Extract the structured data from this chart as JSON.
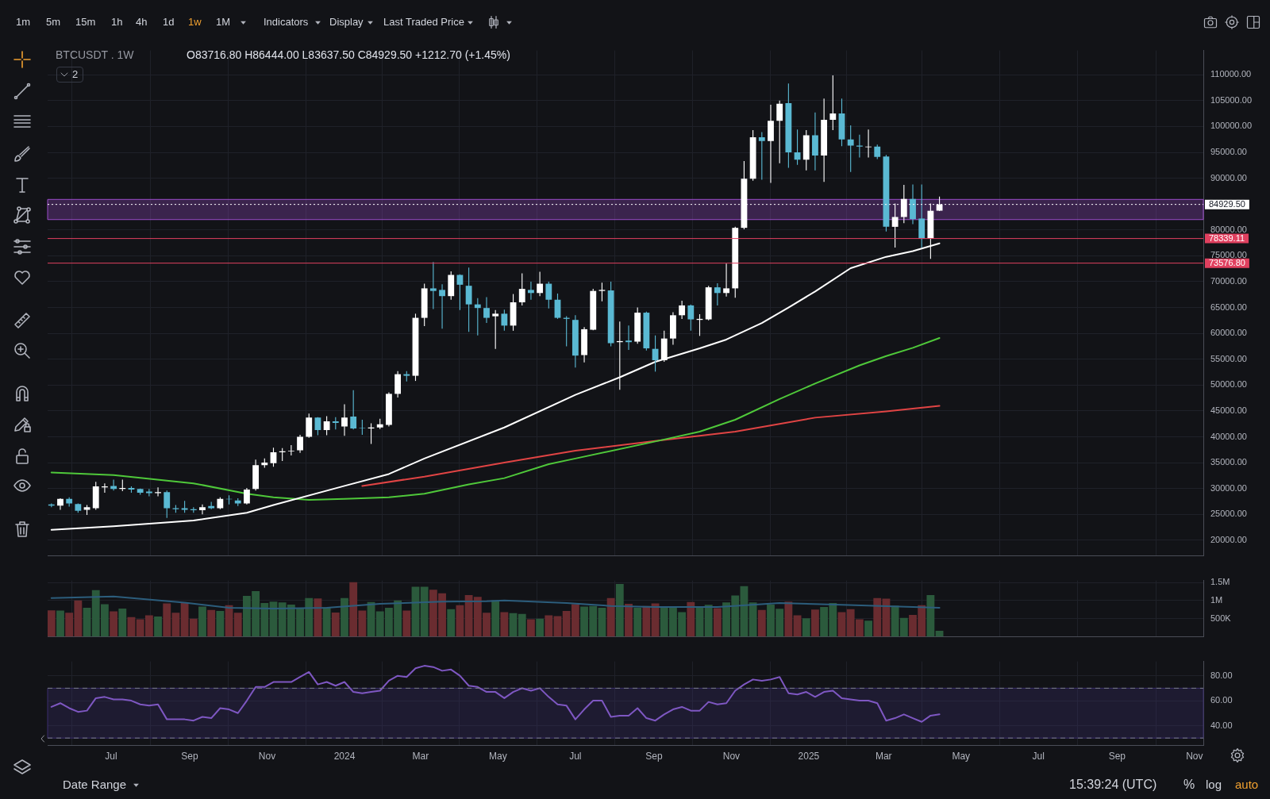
{
  "chart_data": [
    {
      "type": "candlestick",
      "title": "BTCUSDT . 1W",
      "subtitle": "O83716.80 H86444.00 L83637.50 C84929.50 +1212.70 (+1.45%)",
      "annotations": [
        "1m",
        "5m",
        "15m",
        "1h",
        "4h",
        "1d",
        "1w",
        "1M",
        "Indicators",
        "Display",
        "Last Traded Price",
        "2",
        "Date Range",
        "15:39:24 (UTC)",
        "%",
        "log",
        "auto"
      ],
      "x": [
        "2023-05-15",
        "2023-05-22",
        "2023-05-29",
        "2023-06-05",
        "2023-06-12",
        "2023-06-19",
        "2023-06-26",
        "2023-07-03",
        "2023-07-10",
        "2023-07-17",
        "2023-07-24",
        "2023-07-31",
        "2023-08-07",
        "2023-08-14",
        "2023-08-21",
        "2023-08-28",
        "2023-09-04",
        "2023-09-11",
        "2023-09-18",
        "2023-09-25",
        "2023-10-02",
        "2023-10-09",
        "2023-10-16",
        "2023-10-23",
        "2023-10-30",
        "2023-11-06",
        "2023-11-13",
        "2023-11-20",
        "2023-11-27",
        "2023-12-04",
        "2023-12-11",
        "2023-12-18",
        "2023-12-25",
        "2024-01-01",
        "2024-01-08",
        "2024-01-15",
        "2024-01-22",
        "2024-01-29",
        "2024-02-05",
        "2024-02-12",
        "2024-02-19",
        "2024-02-26",
        "2024-03-04",
        "2024-03-11",
        "2024-03-18",
        "2024-03-25",
        "2024-04-01",
        "2024-04-08",
        "2024-04-15",
        "2024-04-22",
        "2024-04-29",
        "2024-05-06",
        "2024-05-13",
        "2024-05-20",
        "2024-05-27",
        "2024-06-03",
        "2024-06-10",
        "2024-06-17",
        "2024-06-24",
        "2024-07-01",
        "2024-07-08",
        "2024-07-15",
        "2024-07-22",
        "2024-07-29",
        "2024-08-05",
        "2024-08-12",
        "2024-08-19",
        "2024-08-26",
        "2024-09-02",
        "2024-09-09",
        "2024-09-16",
        "2024-09-23",
        "2024-09-30",
        "2024-10-07",
        "2024-10-14",
        "2024-10-21",
        "2024-10-28",
        "2024-11-04",
        "2024-11-11",
        "2024-11-18",
        "2024-11-25",
        "2024-12-02",
        "2024-12-09",
        "2024-12-16",
        "2024-12-23",
        "2024-12-30",
        "2025-01-06",
        "2025-01-13",
        "2025-01-20",
        "2025-01-27",
        "2025-02-03",
        "2025-02-10",
        "2025-02-17",
        "2025-02-24",
        "2025-03-03",
        "2025-03-10",
        "2025-03-17",
        "2025-03-24",
        "2025-03-31",
        "2025-04-07",
        "2025-04-14"
      ],
      "ohlc": [
        [
          26900,
          27100,
          26400,
          26700
        ],
        [
          26700,
          28100,
          25900,
          28000
        ],
        [
          28000,
          28300,
          26500,
          27100
        ],
        [
          27000,
          27100,
          25300,
          25700
        ],
        [
          25900,
          26800,
          24900,
          26400
        ],
        [
          26200,
          31300,
          25900,
          30400
        ],
        [
          30200,
          31000,
          29200,
          30400
        ],
        [
          30500,
          31700,
          29600,
          29900
        ],
        [
          29900,
          31700,
          29500,
          30100
        ],
        [
          30100,
          30400,
          29200,
          29800
        ],
        [
          29900,
          30000,
          28800,
          29200
        ],
        [
          29400,
          29900,
          28500,
          29100
        ],
        [
          29100,
          30200,
          28500,
          29300
        ],
        [
          29300,
          29600,
          24300,
          26200
        ],
        [
          26200,
          26800,
          25300,
          26000
        ],
        [
          26200,
          27600,
          25300,
          25900
        ],
        [
          26000,
          26400,
          25300,
          25800
        ],
        [
          25800,
          26900,
          25000,
          26400
        ],
        [
          26600,
          27400,
          26000,
          26200
        ],
        [
          26200,
          28300,
          26000,
          28000
        ],
        [
          28000,
          28700,
          26900,
          27900
        ],
        [
          27700,
          28100,
          26600,
          27100
        ],
        [
          27100,
          30100,
          26900,
          29800
        ],
        [
          29900,
          35600,
          29600,
          34500
        ],
        [
          34500,
          35800,
          34000,
          35000
        ],
        [
          34900,
          37900,
          34200,
          37000
        ],
        [
          37000,
          37800,
          35300,
          37200
        ],
        [
          37200,
          38400,
          36400,
          37300
        ],
        [
          37400,
          40400,
          36900,
          40000
        ],
        [
          40000,
          44500,
          39800,
          43700
        ],
        [
          43700,
          43800,
          40300,
          41300
        ],
        [
          41300,
          44000,
          40300,
          43000
        ],
        [
          43000,
          43800,
          41400,
          42700
        ],
        [
          42000,
          46300,
          40200,
          43700
        ],
        [
          43900,
          49000,
          41400,
          41600
        ],
        [
          41700,
          43300,
          40400,
          41600
        ],
        [
          41600,
          42600,
          38600,
          41800
        ],
        [
          41800,
          43500,
          41500,
          42400
        ],
        [
          42300,
          48600,
          42000,
          48300
        ],
        [
          48300,
          52700,
          47600,
          52100
        ],
        [
          52100,
          52700,
          50700,
          51800
        ],
        [
          51800,
          63800,
          50800,
          63000
        ],
        [
          63000,
          69600,
          61400,
          68700
        ],
        [
          68700,
          73800,
          64700,
          68200
        ],
        [
          68400,
          69500,
          60900,
          67200
        ],
        [
          67200,
          72000,
          66500,
          71300
        ],
        [
          71300,
          71400,
          64500,
          69400
        ],
        [
          69200,
          72700,
          60300,
          65600
        ],
        [
          65600,
          66800,
          59600,
          64900
        ],
        [
          64900,
          67000,
          62000,
          63000
        ],
        [
          63300,
          64500,
          57000,
          63800
        ],
        [
          63800,
          64600,
          60500,
          61500
        ],
        [
          61500,
          67600,
          60500,
          66000
        ],
        [
          66000,
          71600,
          65400,
          68600
        ],
        [
          68400,
          70000,
          66500,
          67800
        ],
        [
          67800,
          71900,
          67200,
          69600
        ],
        [
          69600,
          70000,
          64800,
          66500
        ],
        [
          66500,
          67700,
          62800,
          63000
        ],
        [
          63000,
          63300,
          57500,
          62800
        ],
        [
          62600,
          63500,
          53400,
          55700
        ],
        [
          55800,
          61200,
          54400,
          60800
        ],
        [
          60700,
          68600,
          60600,
          68200
        ],
        [
          68200,
          69800,
          66200,
          68400
        ],
        [
          68300,
          70000,
          57500,
          58100
        ],
        [
          58300,
          62300,
          49100,
          58500
        ],
        [
          58600,
          61500,
          56800,
          58300
        ],
        [
          58400,
          65000,
          58000,
          64000
        ],
        [
          64000,
          64200,
          56700,
          57100
        ],
        [
          57000,
          59600,
          52600,
          54800
        ],
        [
          54800,
          60500,
          54500,
          59000
        ],
        [
          59000,
          64100,
          57800,
          63500
        ],
        [
          63500,
          66300,
          62800,
          65400
        ],
        [
          65400,
          65600,
          60500,
          62700
        ],
        [
          62600,
          63700,
          59500,
          62800
        ],
        [
          62700,
          69200,
          62500,
          68900
        ],
        [
          68900,
          69700,
          65400,
          67800
        ],
        [
          67800,
          73500,
          67100,
          68700
        ],
        [
          68700,
          80600,
          66900,
          80400
        ],
        [
          80400,
          93300,
          80100,
          89900
        ],
        [
          89900,
          99300,
          89500,
          97900
        ],
        [
          97900,
          98900,
          89700,
          97200
        ],
        [
          97200,
          104200,
          89100,
          101100
        ],
        [
          101100,
          105000,
          92900,
          104400
        ],
        [
          104500,
          108300,
          92000,
          95000
        ],
        [
          95000,
          99400,
          92600,
          93600
        ],
        [
          93600,
          99300,
          91500,
          98300
        ],
        [
          98300,
          102700,
          91500,
          94400
        ],
        [
          94400,
          105400,
          89300,
          101300
        ],
        [
          101300,
          109900,
          99300,
          102500
        ],
        [
          102500,
          105400,
          96200,
          97500
        ],
        [
          97500,
          100200,
          91200,
          96300
        ],
        [
          96300,
          98400,
          94000,
          96100
        ],
        [
          96000,
          99400,
          94000,
          96100
        ],
        [
          96100,
          96500,
          93700,
          94100
        ],
        [
          94200,
          94500,
          79700,
          80600
        ],
        [
          80600,
          85100,
          76600,
          82500
        ],
        [
          82500,
          88700,
          81300,
          86000
        ],
        [
          86000,
          88800,
          81100,
          82100
        ],
        [
          82200,
          88800,
          76600,
          78300
        ],
        [
          78300,
          85100,
          74400,
          83700
        ],
        [
          83716.8,
          86444,
          83637.5,
          84929.5
        ]
      ],
      "colors": [
        "#5ab9d3",
        "#ffffff",
        "#5ab9d3",
        "#5ab9d3",
        "#ffffff",
        "#ffffff",
        "#ffffff",
        "#5ab9d3",
        "#ffffff",
        "#5ab9d3",
        "#5ab9d3",
        "#5ab9d3",
        "#ffffff",
        "#5ab9d3",
        "#5ab9d3",
        "#5ab9d3",
        "#5ab9d3",
        "#ffffff",
        "#5ab9d3",
        "#ffffff",
        "#5ab9d3",
        "#5ab9d3",
        "#ffffff",
        "#ffffff",
        "#ffffff",
        "#ffffff",
        "#ffffff",
        "#ffffff",
        "#ffffff",
        "#ffffff",
        "#5ab9d3",
        "#ffffff",
        "#5ab9d3",
        "#ffffff",
        "#5ab9d3",
        "#5ab9d3",
        "#ffffff",
        "#ffffff",
        "#ffffff",
        "#ffffff",
        "#5ab9d3",
        "#ffffff",
        "#ffffff",
        "#5ab9d3",
        "#5ab9d3",
        "#ffffff",
        "#5ab9d3",
        "#5ab9d3",
        "#5ab9d3",
        "#5ab9d3",
        "#ffffff",
        "#5ab9d3",
        "#ffffff",
        "#ffffff",
        "#5ab9d3",
        "#ffffff",
        "#5ab9d3",
        "#5ab9d3",
        "#5ab9d3",
        "#5ab9d3",
        "#ffffff",
        "#ffffff",
        "#ffffff",
        "#5ab9d3",
        "#ffffff",
        "#5ab9d3",
        "#ffffff",
        "#5ab9d3",
        "#5ab9d3",
        "#ffffff",
        "#ffffff",
        "#ffffff",
        "#5ab9d3",
        "#ffffff",
        "#ffffff",
        "#5ab9d3",
        "#ffffff",
        "#ffffff",
        "#ffffff",
        "#ffffff",
        "#5ab9d3",
        "#ffffff",
        "#ffffff",
        "#5ab9d3",
        "#5ab9d3",
        "#ffffff",
        "#5ab9d3",
        "#ffffff",
        "#ffffff",
        "#5ab9d3",
        "#5ab9d3",
        "#5ab9d3",
        "#ffffff",
        "#5ab9d3",
        "#5ab9d3",
        "#ffffff",
        "#ffffff",
        "#5ab9d3",
        "#5ab9d3",
        "#ffffff",
        "#ffffff"
      ],
      "series": [
        {
          "type": "line",
          "color": "#ffffff",
          "x": [
            "2023-05-15",
            "2023-07-03",
            "2023-09-04",
            "2023-10-16",
            "2023-11-06",
            "2024-01-01",
            "2024-02-05",
            "2024-03-04",
            "2024-05-06",
            "2024-07-01",
            "2024-08-05",
            "2024-09-02",
            "2024-10-07",
            "2024-10-28",
            "2024-11-25",
            "2024-12-16",
            "2025-01-06",
            "2025-02-03",
            "2025-03-03",
            "2025-03-24",
            "2025-04-14"
          ],
          "values": [
            22000,
            22700,
            23800,
            25300,
            26800,
            30500,
            32800,
            35800,
            41800,
            48100,
            51500,
            54500,
            57100,
            58800,
            62000,
            65000,
            68100,
            72600,
            74800,
            75900,
            77400
          ]
        },
        {
          "type": "line",
          "color": "#4fc83a",
          "x": [
            "2023-05-15",
            "2023-07-03",
            "2023-09-04",
            "2023-10-16",
            "2023-11-06",
            "2023-12-04",
            "2024-01-01",
            "2024-02-05",
            "2024-03-04",
            "2024-04-08",
            "2024-05-06",
            "2024-06-10",
            "2024-07-01",
            "2024-09-02",
            "2024-10-07",
            "2024-11-04",
            "2024-12-09",
            "2025-01-06",
            "2025-02-10",
            "2025-03-03",
            "2025-03-24",
            "2025-04-14"
          ],
          "values": [
            33100,
            32600,
            31000,
            29000,
            28300,
            27800,
            28000,
            28300,
            29000,
            30800,
            32000,
            34700,
            35800,
            39100,
            41000,
            43300,
            47300,
            50300,
            53800,
            55600,
            57200,
            59100
          ]
        },
        {
          "type": "line",
          "color": "#e04444",
          "x": [
            "2024-01-15",
            "2024-03-04",
            "2024-05-06",
            "2024-07-01",
            "2024-09-02",
            "2024-11-04",
            "2024-12-09",
            "2025-01-06",
            "2025-03-03",
            "2025-04-14"
          ],
          "values": [
            30500,
            32300,
            35000,
            37300,
            39200,
            41000,
            42500,
            43700,
            44900,
            46000
          ]
        }
      ],
      "xlim": [
        "2023-05-12",
        "2025-11-08"
      ],
      "xticks": [
        {
          "value": "2023-07-01",
          "label": null
        },
        {
          "value": "2023-09-01",
          "label": null
        },
        {
          "value": "2023-11-01",
          "label": null
        },
        {
          "value": "2024-01-01",
          "label": null
        },
        {
          "value": "2024-03-01",
          "label": null
        },
        {
          "value": "2024-05-01",
          "label": null
        },
        {
          "value": "2024-07-01",
          "label": null
        },
        {
          "value": "2024-09-01",
          "label": null
        },
        {
          "value": "2024-11-01",
          "label": null
        },
        {
          "value": "2025-01-01",
          "label": null
        },
        {
          "value": "2025-03-01",
          "label": null
        },
        {
          "value": "2025-05-01",
          "label": null
        },
        {
          "value": "2025-07-01",
          "label": null
        },
        {
          "value": "2025-09-01",
          "label": null
        },
        {
          "value": "2025-11-01",
          "label": null
        }
      ],
      "ylim": [
        17000,
        114700
      ],
      "yticks": [
        {
          "value": 20000,
          "label": "20000.00"
        },
        {
          "value": 25000,
          "label": "25000.00"
        },
        {
          "value": 30000,
          "label": "30000.00"
        },
        {
          "value": 35000,
          "label": "35000.00"
        },
        {
          "value": 40000,
          "label": "40000.00"
        },
        {
          "value": 45000,
          "label": "45000.00"
        },
        {
          "value": 50000,
          "label": "50000.00"
        },
        {
          "value": 55000,
          "label": "55000.00"
        },
        {
          "value": 60000,
          "label": "60000.00"
        },
        {
          "value": 65000,
          "label": "65000.00"
        },
        {
          "value": 70000,
          "label": "70000.00"
        },
        {
          "value": 75000,
          "label": "75000.00"
        },
        {
          "value": 80000,
          "label": "80000.00"
        },
        {
          "value": 85000,
          "label": null
        },
        {
          "value": 90000,
          "label": "90000.00"
        },
        {
          "value": 95000,
          "label": "95000.00"
        },
        {
          "value": 100000,
          "label": "100000.00"
        },
        {
          "value": 105000,
          "label": "105000.00"
        },
        {
          "value": 110000,
          "label": "110000.00"
        }
      ],
      "grid": true,
      "tick_labels": "y",
      "bands": [
        {
          "axis": "y",
          "from": 82000,
          "to": 85900,
          "color": "#9b4dca"
        }
      ],
      "ref_lines": [
        {
          "axis": "y",
          "value": 84929.5,
          "label": "84929.50",
          "color": "#ffffff",
          "line_style": "dotted"
        },
        {
          "axis": "y",
          "value": 78339.11,
          "label": "78339.11",
          "color": "#e0405f"
        },
        {
          "axis": "y",
          "value": 73576.8,
          "label": "73576.80",
          "color": "#e0405f"
        }
      ]
    },
    {
      "type": "bar",
      "x": [
        "2023-05-15",
        "2023-05-22",
        "2023-05-29",
        "2023-06-05",
        "2023-06-12",
        "2023-06-19",
        "2023-06-26",
        "2023-07-03",
        "2023-07-10",
        "2023-07-17",
        "2023-07-24",
        "2023-07-31",
        "2023-08-07",
        "2023-08-14",
        "2023-08-21",
        "2023-08-28",
        "2023-09-04",
        "2023-09-11",
        "2023-09-18",
        "2023-09-25",
        "2023-10-02",
        "2023-10-09",
        "2023-10-16",
        "2023-10-23",
        "2023-10-30",
        "2023-11-06",
        "2023-11-13",
        "2023-11-20",
        "2023-11-27",
        "2023-12-04",
        "2023-12-11",
        "2023-12-18",
        "2023-12-25",
        "2024-01-01",
        "2024-01-08",
        "2024-01-15",
        "2024-01-22",
        "2024-01-29",
        "2024-02-05",
        "2024-02-12",
        "2024-02-19",
        "2024-02-26",
        "2024-03-04",
        "2024-03-11",
        "2024-03-18",
        "2024-03-25",
        "2024-04-01",
        "2024-04-08",
        "2024-04-15",
        "2024-04-22",
        "2024-04-29",
        "2024-05-06",
        "2024-05-13",
        "2024-05-20",
        "2024-05-27",
        "2024-06-03",
        "2024-06-10",
        "2024-06-17",
        "2024-06-24",
        "2024-07-01",
        "2024-07-08",
        "2024-07-15",
        "2024-07-22",
        "2024-07-29",
        "2024-08-05",
        "2024-08-12",
        "2024-08-19",
        "2024-08-26",
        "2024-09-02",
        "2024-09-09",
        "2024-09-16",
        "2024-09-23",
        "2024-09-30",
        "2024-10-07",
        "2024-10-14",
        "2024-10-21",
        "2024-10-28",
        "2024-11-04",
        "2024-11-11",
        "2024-11-18",
        "2024-11-25",
        "2024-12-02",
        "2024-12-09",
        "2024-12-16",
        "2024-12-23",
        "2024-12-30",
        "2025-01-06",
        "2025-01-13",
        "2025-01-20",
        "2025-01-27",
        "2025-02-03",
        "2025-02-10",
        "2025-02-17",
        "2025-02-24",
        "2025-03-03",
        "2025-03-10",
        "2025-03-17",
        "2025-03-24",
        "2025-03-31",
        "2025-04-07",
        "2025-04-14"
      ],
      "values": [
        730000,
        720000,
        660000,
        1000000,
        800000,
        1290000,
        900000,
        700000,
        780000,
        540000,
        480000,
        590000,
        560000,
        920000,
        660000,
        950000,
        500000,
        830000,
        740000,
        710000,
        870000,
        660000,
        1130000,
        1260000,
        930000,
        970000,
        950000,
        890000,
        780000,
        1070000,
        1060000,
        810000,
        670000,
        1070000,
        1510000,
        720000,
        960000,
        700000,
        800000,
        1000000,
        720000,
        1380000,
        1380000,
        1300000,
        1200000,
        760000,
        870000,
        1150000,
        1100000,
        660000,
        1010000,
        680000,
        650000,
        630000,
        480000,
        500000,
        590000,
        570000,
        710000,
        900000,
        830000,
        850000,
        800000,
        1070000,
        1460000,
        910000,
        800000,
        850000,
        920000,
        830000,
        830000,
        680000,
        960000,
        800000,
        880000,
        790000,
        950000,
        1140000,
        1400000,
        950000,
        740000,
        890000,
        770000,
        970000,
        590000,
        510000,
        750000,
        820000,
        930000,
        680000,
        760000,
        480000,
        440000,
        1070000,
        1050000,
        860000,
        520000,
        600000,
        870000,
        1150000,
        160000
      ],
      "colors": [
        "#6a2c30",
        "#2b5a3c",
        "#6a2c30",
        "#6a2c30",
        "#2b5a3c",
        "#2b5a3c",
        "#2b5a3c",
        "#6a2c30",
        "#2b5a3c",
        "#6a2c30",
        "#6a2c30",
        "#6a2c30",
        "#2b5a3c",
        "#6a2c30",
        "#6a2c30",
        "#6a2c30",
        "#6a2c30",
        "#2b5a3c",
        "#6a2c30",
        "#2b5a3c",
        "#6a2c30",
        "#6a2c30",
        "#2b5a3c",
        "#2b5a3c",
        "#2b5a3c",
        "#2b5a3c",
        "#2b5a3c",
        "#2b5a3c",
        "#2b5a3c",
        "#2b5a3c",
        "#6a2c30",
        "#2b5a3c",
        "#6a2c30",
        "#2b5a3c",
        "#6a2c30",
        "#6a2c30",
        "#2b5a3c",
        "#2b5a3c",
        "#2b5a3c",
        "#2b5a3c",
        "#6a2c30",
        "#2b5a3c",
        "#2b5a3c",
        "#6a2c30",
        "#6a2c30",
        "#2b5a3c",
        "#6a2c30",
        "#6a2c30",
        "#6a2c30",
        "#6a2c30",
        "#2b5a3c",
        "#6a2c30",
        "#2b5a3c",
        "#2b5a3c",
        "#6a2c30",
        "#2b5a3c",
        "#6a2c30",
        "#6a2c30",
        "#6a2c30",
        "#6a2c30",
        "#2b5a3c",
        "#2b5a3c",
        "#2b5a3c",
        "#6a2c30",
        "#2b5a3c",
        "#6a2c30",
        "#2b5a3c",
        "#6a2c30",
        "#6a2c30",
        "#2b5a3c",
        "#2b5a3c",
        "#2b5a3c",
        "#6a2c30",
        "#2b5a3c",
        "#2b5a3c",
        "#6a2c30",
        "#2b5a3c",
        "#2b5a3c",
        "#2b5a3c",
        "#2b5a3c",
        "#6a2c30",
        "#2b5a3c",
        "#2b5a3c",
        "#6a2c30",
        "#6a2c30",
        "#2b5a3c",
        "#6a2c30",
        "#2b5a3c",
        "#2b5a3c",
        "#6a2c30",
        "#6a2c30",
        "#6a2c30",
        "#2b5a3c",
        "#6a2c30",
        "#6a2c30",
        "#2b5a3c",
        "#2b5a3c",
        "#6a2c30",
        "#6a2c30",
        "#2b5a3c",
        "#2b5a3c"
      ],
      "series": [
        {
          "type": "line",
          "color": "#2c5d7c",
          "x": [
            "2023-05-15",
            "2023-07-03",
            "2023-08-28",
            "2023-10-02",
            "2023-11-06",
            "2023-12-18",
            "2024-01-29",
            "2024-03-18",
            "2024-04-22",
            "2024-05-06",
            "2024-06-24",
            "2024-07-29",
            "2024-09-02",
            "2024-10-21",
            "2024-12-09",
            "2025-01-27",
            "2025-04-14"
          ],
          "values": [
            1070000,
            1110000,
            940000,
            800000,
            780000,
            800000,
            910000,
            970000,
            980000,
            1000000,
            930000,
            850000,
            820000,
            820000,
            930000,
            880000,
            800000
          ]
        }
      ],
      "xlim": [
        "2023-05-12",
        "2025-11-08"
      ],
      "xticks": [
        {
          "value": "2023-07-01",
          "label": null
        },
        {
          "value": "2023-09-01",
          "label": null
        },
        {
          "value": "2023-11-01",
          "label": null
        },
        {
          "value": "2024-01-01",
          "label": null
        },
        {
          "value": "2024-03-01",
          "label": null
        },
        {
          "value": "2024-05-01",
          "label": null
        },
        {
          "value": "2024-07-01",
          "label": null
        },
        {
          "value": "2024-09-01",
          "label": null
        },
        {
          "value": "2024-11-01",
          "label": null
        },
        {
          "value": "2025-01-01",
          "label": null
        },
        {
          "value": "2025-03-01",
          "label": null
        },
        {
          "value": "2025-05-01",
          "label": null
        },
        {
          "value": "2025-07-01",
          "label": null
        },
        {
          "value": "2025-09-01",
          "label": null
        },
        {
          "value": "2025-11-01",
          "label": null
        }
      ],
      "ylim": [
        0,
        1555000
      ],
      "yticks": [
        {
          "value": 500000,
          "label": "500K"
        },
        {
          "value": 1000000,
          "label": "1M"
        },
        {
          "value": 1500000,
          "label": "1.5M"
        }
      ],
      "grid": true,
      "tick_labels": "y"
    },
    {
      "type": "line",
      "x": [
        "2023-05-15",
        "2023-05-22",
        "2023-05-29",
        "2023-06-05",
        "2023-06-12",
        "2023-06-19",
        "2023-06-26",
        "2023-07-03",
        "2023-07-10",
        "2023-07-17",
        "2023-07-24",
        "2023-07-31",
        "2023-08-07",
        "2023-08-14",
        "2023-08-21",
        "2023-08-28",
        "2023-09-04",
        "2023-09-11",
        "2023-09-18",
        "2023-09-25",
        "2023-10-02",
        "2023-10-09",
        "2023-10-16",
        "2023-10-23",
        "2023-10-30",
        "2023-11-06",
        "2023-11-13",
        "2023-11-20",
        "2023-11-27",
        "2023-12-04",
        "2023-12-11",
        "2023-12-18",
        "2023-12-25",
        "2024-01-01",
        "2024-01-08",
        "2024-01-15",
        "2024-01-22",
        "2024-01-29",
        "2024-02-05",
        "2024-02-12",
        "2024-02-19",
        "2024-02-26",
        "2024-03-04",
        "2024-03-11",
        "2024-03-18",
        "2024-03-25",
        "2024-04-01",
        "2024-04-08",
        "2024-04-15",
        "2024-04-22",
        "2024-04-29",
        "2024-05-06",
        "2024-05-13",
        "2024-05-20",
        "2024-05-27",
        "2024-06-03",
        "2024-06-10",
        "2024-06-17",
        "2024-06-24",
        "2024-07-01",
        "2024-07-08",
        "2024-07-15",
        "2024-07-22",
        "2024-07-29",
        "2024-08-05",
        "2024-08-12",
        "2024-08-19",
        "2024-08-26",
        "2024-09-02",
        "2024-09-09",
        "2024-09-16",
        "2024-09-23",
        "2024-09-30",
        "2024-10-07",
        "2024-10-14",
        "2024-10-21",
        "2024-10-28",
        "2024-11-04",
        "2024-11-11",
        "2024-11-18",
        "2024-11-25",
        "2024-12-02",
        "2024-12-09",
        "2024-12-16",
        "2024-12-23",
        "2024-12-30",
        "2025-01-06",
        "2025-01-13",
        "2025-01-20",
        "2025-01-27",
        "2025-02-03",
        "2025-02-10",
        "2025-02-17",
        "2025-02-24",
        "2025-03-03",
        "2025-03-10",
        "2025-03-17",
        "2025-03-24",
        "2025-03-31",
        "2025-04-07",
        "2025-04-14"
      ],
      "series": [
        {
          "color": "#7e57c2",
          "values": [
            55,
            58,
            54,
            51,
            52,
            62,
            63,
            61,
            61,
            60,
            57,
            56,
            57,
            45,
            45,
            45,
            44,
            47,
            46,
            54,
            53,
            50,
            60,
            71,
            71,
            75,
            75,
            75,
            79,
            83,
            73,
            75,
            72,
            75,
            67,
            66,
            67,
            68,
            76,
            80,
            79,
            86,
            88,
            87,
            84,
            85,
            80,
            72,
            71,
            67,
            67,
            62,
            67,
            70,
            68,
            70,
            63,
            57,
            56,
            45,
            53,
            60,
            60,
            47,
            48,
            48,
            54,
            46,
            44,
            49,
            53,
            55,
            52,
            52,
            59,
            57,
            58,
            68,
            73,
            77,
            76,
            77,
            79,
            66,
            65,
            67,
            63,
            67,
            68,
            62,
            61,
            60,
            60,
            58,
            44,
            46,
            49,
            46,
            43,
            48,
            49
          ]
        }
      ],
      "xlim": [
        "2023-05-12",
        "2025-11-08"
      ],
      "xticks": [
        {
          "value": "2023-07-01",
          "label": "Jul"
        },
        {
          "value": "2023-09-01",
          "label": "Sep"
        },
        {
          "value": "2023-11-01",
          "label": "Nov"
        },
        {
          "value": "2024-01-01",
          "label": "2024"
        },
        {
          "value": "2024-03-01",
          "label": "Mar"
        },
        {
          "value": "2024-05-01",
          "label": "May"
        },
        {
          "value": "2024-07-01",
          "label": "Jul"
        },
        {
          "value": "2024-09-01",
          "label": "Sep"
        },
        {
          "value": "2024-11-01",
          "label": "Nov"
        },
        {
          "value": "2025-01-01",
          "label": "2025"
        },
        {
          "value": "2025-03-01",
          "label": "Mar"
        },
        {
          "value": "2025-05-01",
          "label": "May"
        },
        {
          "value": "2025-07-01",
          "label": "Jul"
        },
        {
          "value": "2025-09-01",
          "label": "Sep"
        },
        {
          "value": "2025-11-01",
          "label": "Nov"
        }
      ],
      "ylim": [
        24,
        91.5
      ],
      "yticks": [
        {
          "value": 40,
          "label": "40.00"
        },
        {
          "value": 60,
          "label": "60.00"
        },
        {
          "value": 80,
          "label": "80.00"
        }
      ],
      "grid": true,
      "bands": [
        {
          "axis": "y",
          "from": 30,
          "to": 70,
          "color": "#3b2f6e"
        }
      ],
      "ref_lines": [
        {
          "axis": "y",
          "value": 70,
          "color": "#787b86",
          "line_style": "dashed"
        },
        {
          "axis": "y",
          "value": 30,
          "color": "#787b86",
          "line_style": "dashed"
        }
      ]
    }
  ]
}
